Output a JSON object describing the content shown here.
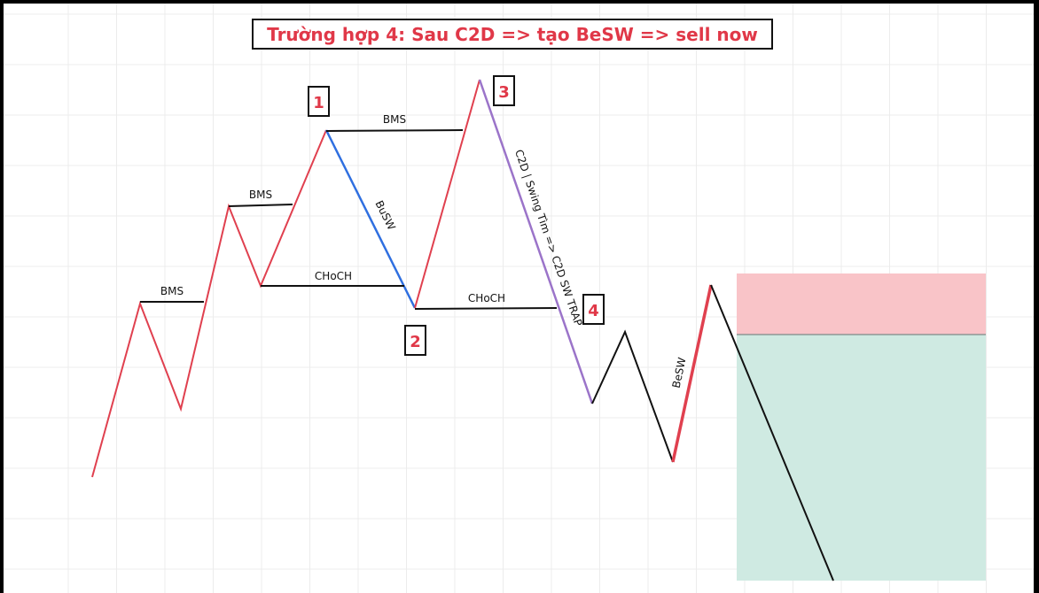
{
  "title": "Trường hợp 4: Sau C2D => tạo BeSW => sell now",
  "labels": {
    "bms_1": "BMS",
    "bms_2": "BMS",
    "bms_3": "BMS",
    "choch_1": "CHoCH",
    "choch_2": "CHoCH",
    "busw": "BuSW",
    "besw": "BeSW",
    "trap": "C2D | Swing Tìm => C2D SW TRAP"
  },
  "points": {
    "p1": "1",
    "p2": "2",
    "p3": "3",
    "p4": "4"
  },
  "colors": {
    "bullish_leg": "#e0404f",
    "bearish_sweep": "#2f6fe0",
    "trap_leg": "#9b74c9",
    "neutral_leg": "#111111",
    "label_red": "#e03848",
    "stop_zone": "#f9c4c8",
    "target_zone": "#cfeae2",
    "grid": "#ececec"
  }
}
